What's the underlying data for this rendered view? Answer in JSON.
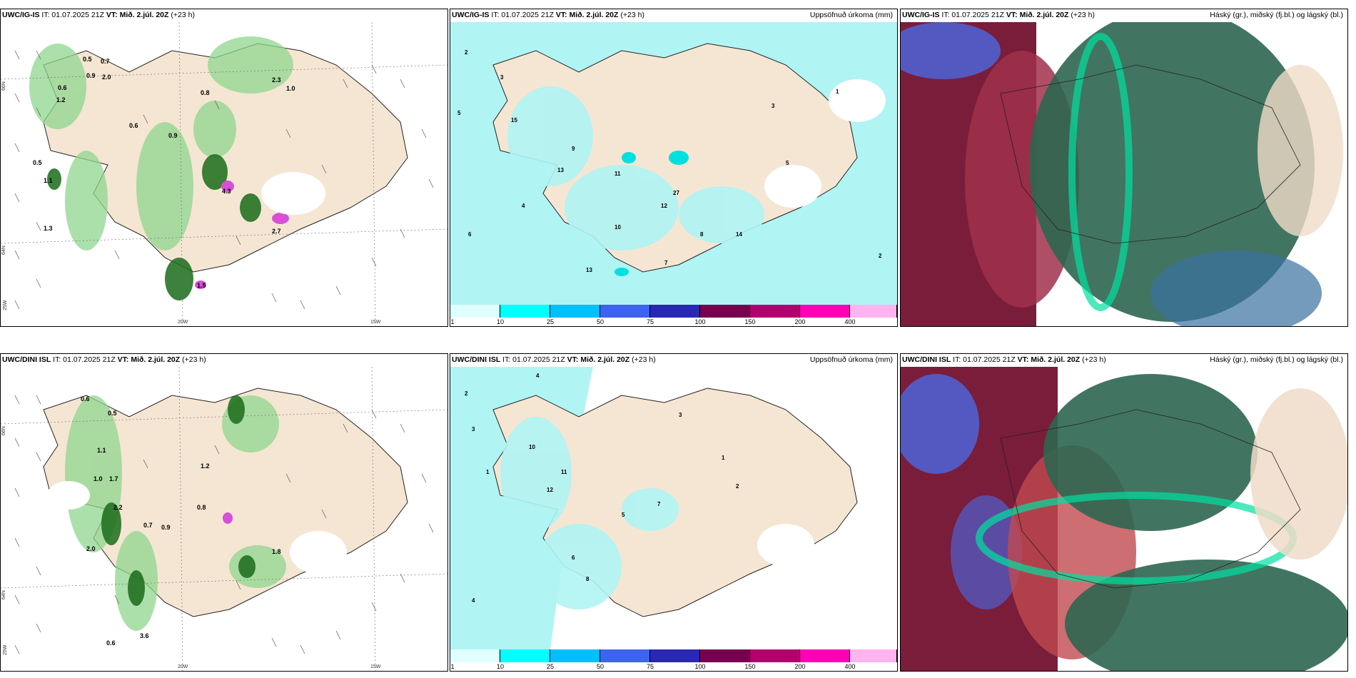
{
  "rows": [
    {
      "model": "UWC/IG-IS",
      "init": "IT: 01.07.2025 21Z",
      "vt_label": "VT:",
      "vt": "Mið. 2.júl. 20Z",
      "lead": "(+23 h)",
      "precip_title": "Uppsöfnuð úrkoma (mm)",
      "cloud_title": "Háský (gr.), miðský (fj.bl.) og lágský (bl.)",
      "lat_labels": [
        "66N",
        "64N"
      ],
      "lon_labels": [
        "25W",
        "20W",
        "15W"
      ]
    },
    {
      "model": "UWC/DINI ISL",
      "init": "IT: 01.07.2025 21Z",
      "vt_label": "VT:",
      "vt": "Mið. 2.júl. 20Z",
      "lead": "(+23 h)",
      "precip_title": "Uppsöfnuð úrkoma (mm)",
      "cloud_title": "Háský (gr.), miðský (fj.bl.) og lágský (bl.)",
      "lat_labels": [
        "66N",
        "64N"
      ],
      "lon_labels": [
        "25W",
        "20W",
        "15W"
      ]
    }
  ],
  "colorbar": {
    "labels": [
      "1",
      "10",
      "25",
      "50",
      "75",
      "100",
      "150",
      "200",
      "400"
    ],
    "colors": [
      "#e0ffff",
      "#00ffff",
      "#00bfff",
      "#3c64f0",
      "#2828b4",
      "#780050",
      "#b4006e",
      "#ff00b4",
      "#ffb4f0"
    ]
  },
  "precip_values_top": [
    "2",
    "5",
    "3",
    "15",
    "13",
    "11",
    "4",
    "9",
    "27",
    "12",
    "6",
    "10",
    "3",
    "1",
    "2",
    "14",
    "13",
    "7",
    "5",
    "8"
  ],
  "precip_values_bottom": [
    "2",
    "4",
    "3",
    "1",
    "10",
    "11",
    "12",
    "6",
    "5",
    "7",
    "8",
    "2",
    "3",
    "1",
    "4"
  ],
  "mixed_values_top": [
    "0.5",
    "0.7",
    "0.9",
    "2.0",
    "0.6",
    "1.2",
    "0.8",
    "1.0",
    "1.1",
    "2.3",
    "0.5",
    "0.6",
    "1.3",
    "0.9",
    "4.3",
    "2.7",
    "1.5"
  ],
  "mixed_values_bottom": [
    "0.6",
    "0.5",
    "1.1",
    "1.0",
    "1.7",
    "2.2",
    "0.8",
    "1.2",
    "0.7",
    "0.9",
    "1.8",
    "3.6",
    "0.6",
    "2.0"
  ]
}
